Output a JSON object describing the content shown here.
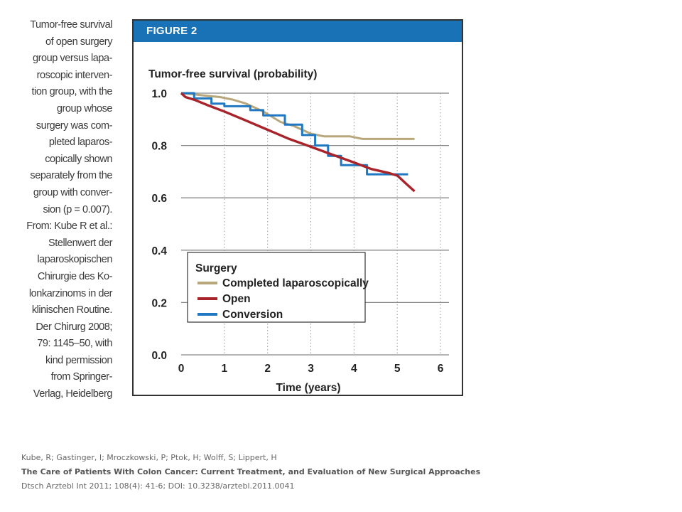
{
  "caption_lines": [
    "Tumor-free survival",
    "of open surgery",
    "group versus lapa-",
    "roscopic interven-",
    "tion group, with the",
    "group whose",
    "surgery was com-",
    "pleted laparos-",
    "copically shown",
    "separately from the",
    "group with conver-",
    "sion (p = 0.007).",
    "From: Kube R et al.:",
    "Stellenwert der",
    "laparoskopischen",
    "Chirurgie des Ko-",
    "lonkarzinoms in der",
    "klinischen Routine.",
    "Der Chirurg 2008;",
    "79: 1145–50, with",
    "kind permission",
    "from Springer-",
    "Verlag, Heidelberg"
  ],
  "figure": {
    "header": "FIGURE 2"
  },
  "chart_data": {
    "type": "line",
    "title": "Tumor-free survival (probability)",
    "xlabel": "Time (years)",
    "ylabel": "",
    "xlim": [
      0,
      6
    ],
    "ylim": [
      0,
      1.0
    ],
    "x_ticks": [
      "0",
      "1",
      "2",
      "3",
      "4",
      "5",
      "6"
    ],
    "y_ticks": [
      "0.0",
      "0.2",
      "0.4",
      "0.6",
      "0.8",
      "1.0"
    ],
    "grid": {
      "horizontal": "solid",
      "vertical": "dotted"
    },
    "legend": {
      "title": "Surgery",
      "position": "bottom-left"
    },
    "series": [
      {
        "name": "Completed laparoscopically",
        "color": "#b9a77c",
        "step": false,
        "x": [
          0,
          0.3,
          0.6,
          0.9,
          1.2,
          1.5,
          1.7,
          1.9,
          2.1,
          2.3,
          2.6,
          2.8,
          3.0,
          3.3,
          3.6,
          3.9,
          4.2,
          4.6,
          5.0,
          5.4
        ],
        "y": [
          1.0,
          0.995,
          0.99,
          0.985,
          0.975,
          0.96,
          0.945,
          0.93,
          0.91,
          0.89,
          0.875,
          0.86,
          0.845,
          0.835,
          0.835,
          0.835,
          0.825,
          0.825,
          0.825,
          0.825
        ]
      },
      {
        "name": "Open",
        "color": "#a8232a",
        "step": false,
        "x": [
          0,
          0.1,
          0.3,
          0.6,
          1.0,
          1.5,
          2.0,
          2.5,
          3.0,
          3.5,
          4.0,
          4.4,
          4.8,
          5.0,
          5.1,
          5.2,
          5.3,
          5.4
        ],
        "y": [
          1.0,
          0.985,
          0.975,
          0.955,
          0.93,
          0.895,
          0.86,
          0.825,
          0.795,
          0.765,
          0.735,
          0.71,
          0.695,
          0.685,
          0.67,
          0.655,
          0.64,
          0.625
        ]
      },
      {
        "name": "Conversion",
        "color": "#1f78c1",
        "step": true,
        "x": [
          0,
          0.3,
          0.7,
          1.0,
          1.6,
          1.9,
          2.4,
          2.8,
          3.1,
          3.4,
          3.7,
          4.3,
          4.8,
          5.25
        ],
        "y": [
          1.0,
          0.98,
          0.96,
          0.95,
          0.935,
          0.915,
          0.88,
          0.84,
          0.8,
          0.76,
          0.725,
          0.69,
          0.69,
          0.69
        ]
      }
    ]
  },
  "citation": {
    "authors": "Kube, R; Gastinger, I; Mroczkowski, P; Ptok, H; Wolff, S; Lippert, H",
    "title": "The Care of Patients With Colon Cancer: Current Treatment, and Evaluation  of New Surgical Approaches",
    "source": "Dtsch Arztebl Int 2011; 108(4): 41-6; DOI: 10.3238/arztebl.2011.0041"
  }
}
